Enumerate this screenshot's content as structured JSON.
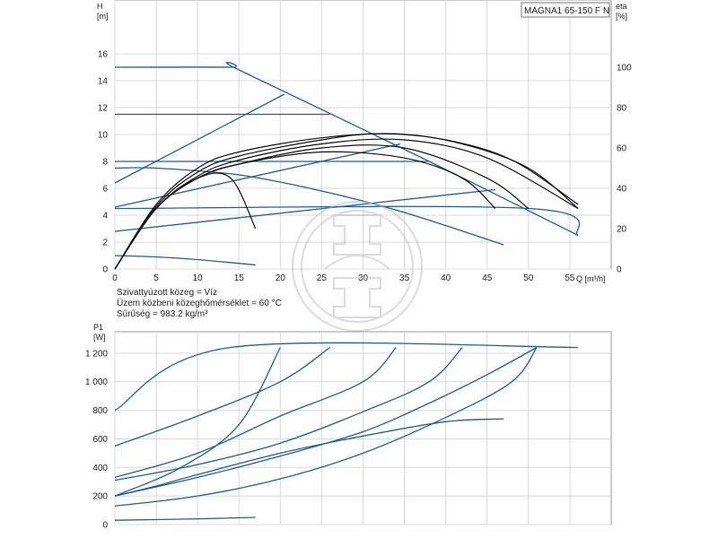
{
  "chart_data": [
    {
      "type": "line",
      "title": "MAGNA1 65-150 F N",
      "y_axis_label": "H\n[m]",
      "y2_axis_label": "eta\n[%]",
      "x_axis_label": "Q [m³/h]",
      "xlim": [
        0,
        60
      ],
      "ylim": [
        0,
        20
      ],
      "y2lim": [
        0,
        133.3
      ],
      "x_ticks": [
        0,
        5,
        10,
        15,
        20,
        25,
        30,
        35,
        40,
        45,
        50,
        55
      ],
      "y_ticks": [
        0,
        2,
        4,
        6,
        8,
        10,
        12,
        14,
        16
      ],
      "y2_ticks": [
        0,
        20,
        40,
        60,
        80,
        100
      ],
      "grid": true,
      "head_curves": [
        {
          "points": [
            [
              0,
              15
            ],
            [
              14,
              15
            ],
            [
              15,
              14.8
            ],
            [
              38,
              8
            ],
            [
              56,
              2.5
            ]
          ]
        },
        {
          "points": [
            [
              0,
              11.5
            ],
            [
              26,
              11.5
            ]
          ]
        },
        {
          "points": [
            [
              0,
              8
            ],
            [
              38,
              8
            ]
          ]
        },
        {
          "points": [
            [
              0,
              7.5
            ],
            [
              5,
              7.5
            ],
            [
              15,
              7
            ],
            [
              25,
              5.8
            ],
            [
              35,
              4.2
            ],
            [
              47,
              1.8
            ]
          ]
        },
        {
          "points": [
            [
              0,
              4.5
            ],
            [
              50,
              4.5
            ],
            [
              56,
              2.5
            ]
          ]
        },
        {
          "points": [
            [
              0,
              1
            ],
            [
              5,
              0.9
            ],
            [
              10,
              0.7
            ],
            [
              17,
              0.3
            ]
          ]
        },
        {
          "points": [
            [
              0,
              6.4
            ],
            [
              20.5,
              13
            ]
          ]
        },
        {
          "points": [
            [
              0,
              4.6
            ],
            [
              34.5,
              9.3
            ]
          ]
        },
        {
          "points": [
            [
              0,
              2.8
            ],
            [
              46,
              5.9
            ]
          ]
        }
      ],
      "efficiency_curves": [
        {
          "points": [
            [
              0,
              0
            ],
            [
              5,
              30
            ],
            [
              10,
              45
            ],
            [
              14,
              45
            ],
            [
              17,
              20
            ]
          ]
        },
        {
          "points": [
            [
              0,
              0
            ],
            [
              5,
              30
            ],
            [
              10,
              45
            ],
            [
              15,
              52
            ],
            [
              25,
              58
            ],
            [
              35,
              55
            ],
            [
              42,
              45
            ],
            [
              46,
              30
            ]
          ]
        },
        {
          "points": [
            [
              0,
              0
            ],
            [
              5,
              30
            ],
            [
              10,
              45
            ],
            [
              15,
              52
            ],
            [
              25,
              60
            ],
            [
              35,
              60
            ],
            [
              45,
              45
            ],
            [
              50,
              30
            ]
          ]
        },
        {
          "points": [
            [
              0,
              0
            ],
            [
              5,
              30
            ],
            [
              10,
              46
            ],
            [
              15,
              54
            ],
            [
              25,
              62
            ],
            [
              35,
              64
            ],
            [
              45,
              55
            ],
            [
              56,
              30
            ]
          ]
        },
        {
          "points": [
            [
              0,
              0
            ],
            [
              5,
              31
            ],
            [
              10,
              48
            ],
            [
              15,
              56
            ],
            [
              25,
              64
            ],
            [
              32,
              67
            ],
            [
              40,
              64
            ],
            [
              48,
              54
            ],
            [
              56,
              32
            ]
          ]
        },
        {
          "points": [
            [
              0,
              0
            ],
            [
              5,
              32
            ],
            [
              10,
              50
            ],
            [
              15,
              58
            ],
            [
              25,
              65
            ],
            [
              34,
              67
            ],
            [
              42,
              62
            ],
            [
              50,
              50
            ],
            [
              56,
              30
            ]
          ]
        }
      ],
      "annotations": [
        "Szivattyúzott közeg = Víz",
        "Üzem közbeni közeghőmérséklet = 60 °C",
        "Sűrűség = 983.2 kg/m³"
      ]
    },
    {
      "type": "line",
      "y_axis_label": "P1\n[W]",
      "xlim": [
        0,
        60
      ],
      "ylim": [
        0,
        1350
      ],
      "y_ticks": [
        0,
        200,
        400,
        600,
        800,
        1000,
        1200
      ],
      "y_tick_labels": [
        "0",
        "200",
        "400",
        "600",
        "800",
        "1 000",
        "1 200"
      ],
      "x_ticks": [
        0,
        5,
        10,
        15,
        20,
        25,
        30,
        35,
        40,
        45,
        50,
        55
      ],
      "x_tick_labels": [
        "",
        "",
        "",
        "",
        "",
        "",
        "",
        "",
        "",
        "",
        "",
        ""
      ],
      "grid": true,
      "power_curves": [
        {
          "points": [
            [
              0,
              800
            ],
            [
              14,
              1240
            ],
            [
              56,
              1240
            ]
          ]
        },
        {
          "points": [
            [
              0,
              550
            ],
            [
              10,
              760
            ],
            [
              20,
              1000
            ],
            [
              26,
              1240
            ]
          ]
        },
        {
          "points": [
            [
              0,
              330
            ],
            [
              10,
              500
            ],
            [
              20,
              760
            ],
            [
              30,
              1000
            ],
            [
              34,
              1240
            ]
          ]
        },
        {
          "points": [
            [
              0,
              310
            ],
            [
              10,
              420
            ],
            [
              20,
              570
            ],
            [
              30,
              790
            ],
            [
              38,
              1000
            ],
            [
              42,
              1240
            ]
          ]
        },
        {
          "points": [
            [
              0,
              200
            ],
            [
              10,
              330
            ],
            [
              20,
              480
            ],
            [
              30,
              650
            ],
            [
              38,
              850
            ],
            [
              45,
              1050
            ],
            [
              51,
              1240
            ]
          ]
        },
        {
          "points": [
            [
              0,
              130
            ],
            [
              10,
              200
            ],
            [
              20,
              320
            ],
            [
              30,
              500
            ],
            [
              40,
              750
            ],
            [
              48,
              1000
            ],
            [
              51,
              1240
            ]
          ]
        },
        {
          "points": [
            [
              0,
              200
            ],
            [
              5,
              270
            ],
            [
              10,
              350
            ],
            [
              20,
              500
            ],
            [
              30,
              620
            ],
            [
              40,
              720
            ],
            [
              47,
              740
            ]
          ]
        },
        {
          "points": [
            [
              0,
              200
            ],
            [
              8,
              400
            ],
            [
              15,
              700
            ],
            [
              20,
              1240
            ]
          ]
        },
        {
          "points": [
            [
              0,
              30
            ],
            [
              10,
              40
            ],
            [
              17,
              50
            ]
          ]
        }
      ]
    }
  ],
  "watermark": "Grundfos logo watermark"
}
